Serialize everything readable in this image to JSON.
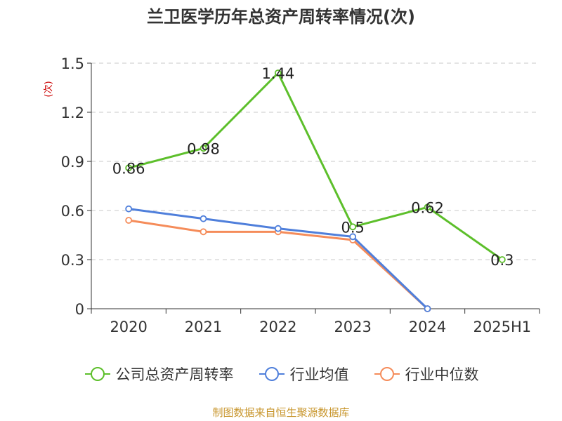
{
  "title": "兰卫医学历年总资产周转率情况(次)",
  "y_unit": "(次)",
  "source": "制图数据来自恒生聚源数据库",
  "chart_data": {
    "type": "line",
    "title": "兰卫医学历年总资产周转率情况(次)",
    "categories": [
      "2020",
      "2021",
      "2022",
      "2023",
      "2024",
      "2025H1"
    ],
    "ylim": [
      0,
      1.5
    ],
    "yticks": [
      "0",
      "0.3",
      "0.6",
      "0.9",
      "1.2",
      "1.5"
    ],
    "grid": true,
    "legend_position": "bottom",
    "series": [
      {
        "name": "公司总资产周转率",
        "color": "#5dbf2b",
        "values": [
          0.86,
          0.98,
          1.44,
          0.5,
          0.62,
          0.3
        ],
        "labels": [
          "0.86",
          "0.98",
          "1.44",
          "0.5",
          "0.62",
          "0.3"
        ],
        "show_labels": true
      },
      {
        "name": "行业均值",
        "color": "#4f7fdb",
        "values": [
          0.61,
          0.55,
          0.49,
          0.44,
          0.0,
          null
        ],
        "show_labels": false
      },
      {
        "name": "行业中位数",
        "color": "#f58c5a",
        "values": [
          0.54,
          0.47,
          0.47,
          0.42,
          0.0,
          null
        ],
        "show_labels": false
      }
    ]
  }
}
